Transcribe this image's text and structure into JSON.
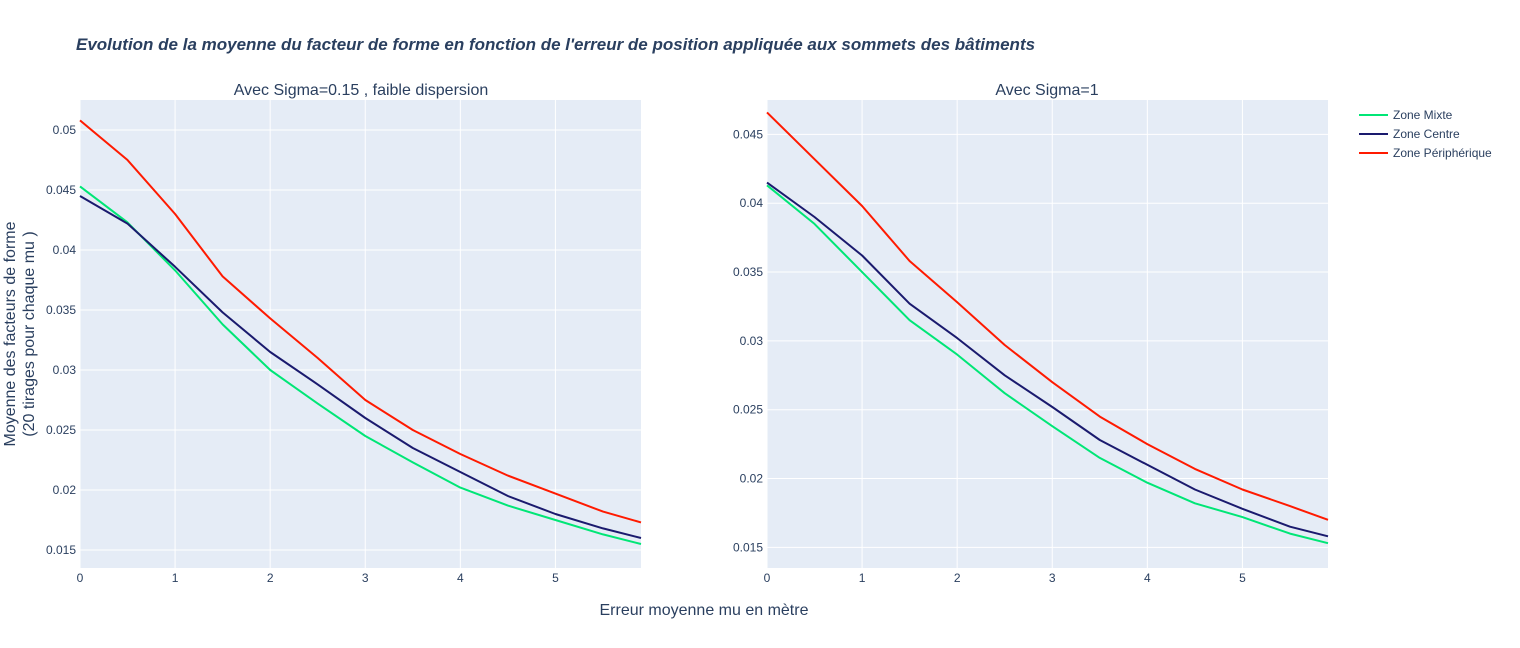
{
  "figure": {
    "title": "Evolution de la moyenne du facteur de forme en fonction de l'erreur de position appliquée aux sommets des bâtiments",
    "xlabel": "Erreur moyenne mu en mètre",
    "ylabel_line1": "Moyenne des facteurs de forme",
    "ylabel_line2": "(20 tirages pour chaque mu )",
    "colors": {
      "plot_bg": "#e5ecf6",
      "grid": "#ffffff",
      "text": "#2a3f5f"
    }
  },
  "legend": [
    {
      "name": "Zone Mixte",
      "color": "#00e676"
    },
    {
      "name": "Zone Centre",
      "color": "#1a1a6e"
    },
    {
      "name": "Zone Périphérique",
      "color": "#ff1a00"
    }
  ],
  "chart_data": [
    {
      "type": "line",
      "title": "Avec Sigma=0.15 , faible dispersion",
      "xlim": [
        0,
        5.9
      ],
      "ylim": [
        0.0135,
        0.0525
      ],
      "xticks": [
        0,
        1,
        2,
        3,
        4,
        5
      ],
      "xtick_labels": [
        "0",
        "1",
        "2",
        "3",
        "4",
        "5"
      ],
      "yticks": [
        0.015,
        0.02,
        0.025,
        0.03,
        0.035,
        0.04,
        0.045,
        0.05
      ],
      "ytick_labels": [
        "0.015",
        "0.02",
        "0.025",
        "0.03",
        "0.035",
        "0.04",
        "0.045",
        "0.05"
      ],
      "x": [
        0,
        0.5,
        1,
        1.5,
        2,
        2.5,
        3,
        3.5,
        4,
        4.5,
        5,
        5.5,
        5.9
      ],
      "series": [
        {
          "name": "Zone Mixte",
          "color": "#00e676",
          "values": [
            0.0453,
            0.0423,
            0.0383,
            0.0338,
            0.03,
            0.0272,
            0.0245,
            0.0223,
            0.0202,
            0.0187,
            0.0175,
            0.0163,
            0.0155
          ]
        },
        {
          "name": "Zone Centre",
          "color": "#1a1a6e",
          "values": [
            0.0445,
            0.0422,
            0.0386,
            0.0348,
            0.0315,
            0.0288,
            0.026,
            0.0235,
            0.0215,
            0.0195,
            0.018,
            0.0168,
            0.016
          ]
        },
        {
          "name": "Zone Périphérique",
          "color": "#ff1a00",
          "values": [
            0.0508,
            0.0475,
            0.043,
            0.0378,
            0.0343,
            0.031,
            0.0275,
            0.025,
            0.023,
            0.0212,
            0.0197,
            0.0182,
            0.0173
          ]
        }
      ]
    },
    {
      "type": "line",
      "title": "Avec Sigma=1",
      "xlim": [
        0,
        5.9
      ],
      "ylim": [
        0.0135,
        0.0475
      ],
      "xticks": [
        0,
        1,
        2,
        3,
        4,
        5
      ],
      "xtick_labels": [
        "0",
        "1",
        "2",
        "3",
        "4",
        "5"
      ],
      "yticks": [
        0.015,
        0.02,
        0.025,
        0.03,
        0.035,
        0.04,
        0.045
      ],
      "ytick_labels": [
        "0.015",
        "0.02",
        "0.025",
        "0.03",
        "0.035",
        "0.04",
        "0.045"
      ],
      "x": [
        0,
        0.5,
        1,
        1.5,
        2,
        2.5,
        3,
        3.5,
        4,
        4.5,
        5,
        5.5,
        5.9
      ],
      "series": [
        {
          "name": "Zone Mixte",
          "color": "#00e676",
          "values": [
            0.0413,
            0.0385,
            0.035,
            0.0315,
            0.029,
            0.0262,
            0.0238,
            0.0215,
            0.0197,
            0.0182,
            0.0172,
            0.016,
            0.0153
          ]
        },
        {
          "name": "Zone Centre",
          "color": "#1a1a6e",
          "values": [
            0.0415,
            0.039,
            0.0362,
            0.0327,
            0.0302,
            0.0275,
            0.0252,
            0.0228,
            0.021,
            0.0192,
            0.0178,
            0.0165,
            0.0158
          ]
        },
        {
          "name": "Zone Périphérique",
          "color": "#ff1a00",
          "values": [
            0.0466,
            0.0432,
            0.0398,
            0.0358,
            0.0328,
            0.0297,
            0.027,
            0.0245,
            0.0225,
            0.0207,
            0.0192,
            0.018,
            0.017
          ]
        }
      ]
    }
  ]
}
